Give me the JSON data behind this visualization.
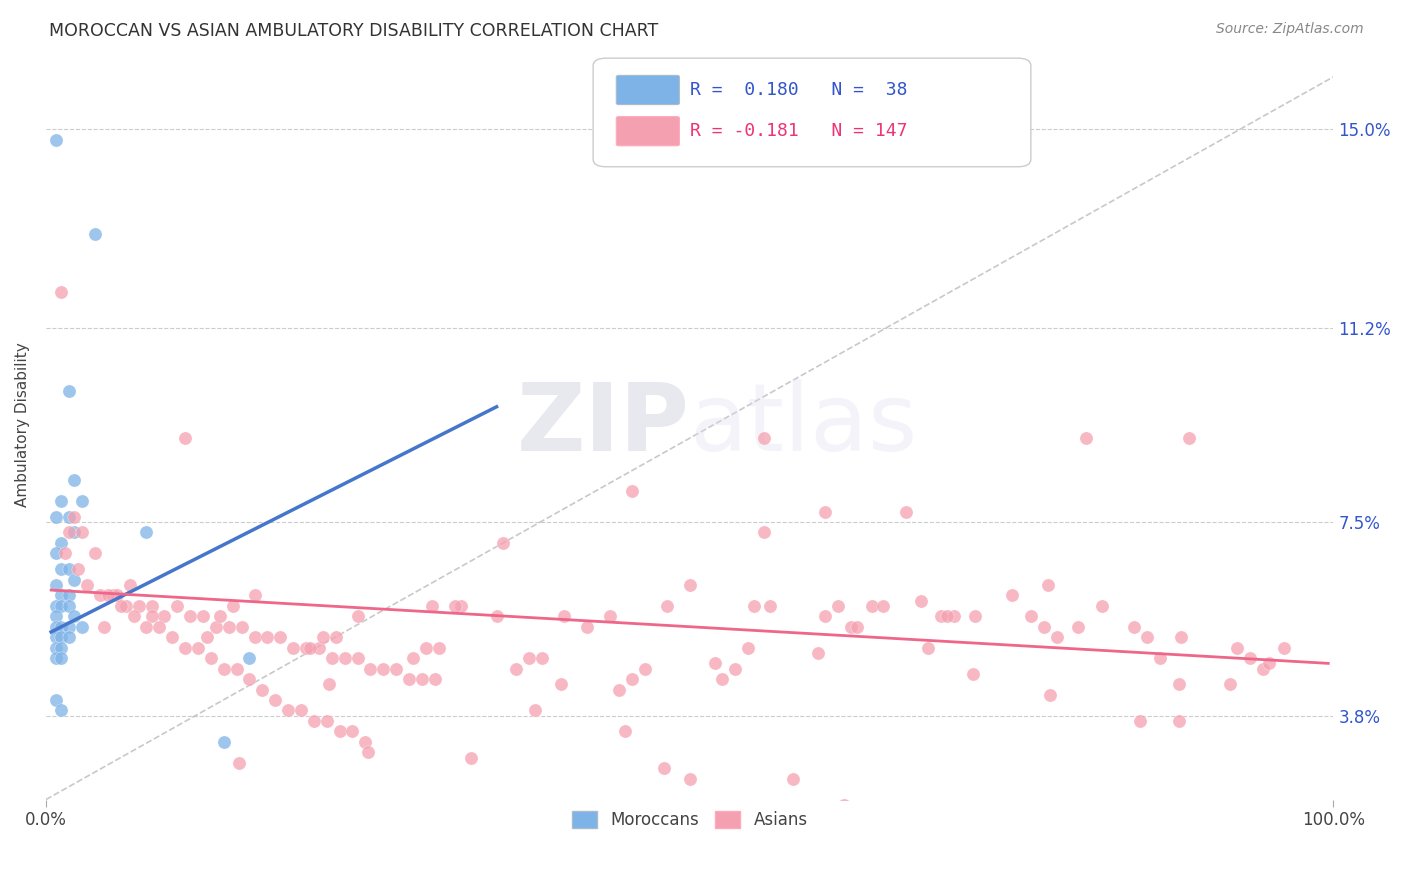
{
  "title": "MOROCCAN VS ASIAN AMBULATORY DISABILITY CORRELATION CHART",
  "source": "Source: ZipAtlas.com",
  "ylabel": "Ambulatory Disability",
  "ytick_labels": [
    "3.8%",
    "7.5%",
    "11.2%",
    "15.0%"
  ],
  "ytick_values": [
    0.038,
    0.075,
    0.112,
    0.15
  ],
  "xmin": 0.0,
  "xmax": 1.0,
  "ymin": 0.022,
  "ymax": 0.165,
  "moroccan_color": "#7EB3E8",
  "asian_color": "#F5A0B0",
  "moroccan_line_color": "#4477CC",
  "asian_line_color": "#EE6688",
  "dashed_line_color": "#BBBBBB",
  "legend_text_color": "#3355CC",
  "watermark_color": "#DDDDEE",
  "background_color": "#FFFFFF",
  "moroccan_x": [
    0.008,
    0.038,
    0.018,
    0.022,
    0.012,
    0.028,
    0.008,
    0.018,
    0.022,
    0.012,
    0.008,
    0.012,
    0.018,
    0.022,
    0.008,
    0.012,
    0.018,
    0.008,
    0.012,
    0.018,
    0.008,
    0.022,
    0.008,
    0.012,
    0.018,
    0.028,
    0.008,
    0.012,
    0.018,
    0.008,
    0.012,
    0.008,
    0.012,
    0.078,
    0.158,
    0.008,
    0.012,
    0.138
  ],
  "moroccan_y": [
    0.148,
    0.13,
    0.1,
    0.083,
    0.079,
    0.079,
    0.076,
    0.076,
    0.073,
    0.071,
    0.069,
    0.066,
    0.066,
    0.064,
    0.063,
    0.061,
    0.061,
    0.059,
    0.059,
    0.059,
    0.057,
    0.057,
    0.055,
    0.055,
    0.055,
    0.055,
    0.053,
    0.053,
    0.053,
    0.051,
    0.051,
    0.049,
    0.049,
    0.073,
    0.049,
    0.041,
    0.039,
    0.033
  ],
  "moroccan_line_x": [
    0.004,
    0.35
  ],
  "moroccan_line_y": [
    0.054,
    0.097
  ],
  "asian_line_x": [
    0.004,
    0.996
  ],
  "asian_line_y": [
    0.062,
    0.048
  ],
  "diag_line_x": [
    0.0,
    1.0
  ],
  "diag_line_y": [
    0.022,
    0.16
  ],
  "asian_x": [
    0.012,
    0.022,
    0.015,
    0.025,
    0.032,
    0.042,
    0.052,
    0.062,
    0.072,
    0.082,
    0.092,
    0.102,
    0.112,
    0.122,
    0.132,
    0.142,
    0.152,
    0.162,
    0.172,
    0.182,
    0.192,
    0.202,
    0.212,
    0.222,
    0.232,
    0.242,
    0.252,
    0.262,
    0.272,
    0.282,
    0.292,
    0.302,
    0.082,
    0.162,
    0.242,
    0.322,
    0.402,
    0.482,
    0.562,
    0.642,
    0.722,
    0.802,
    0.882,
    0.962,
    0.055,
    0.135,
    0.215,
    0.295,
    0.375,
    0.455,
    0.535,
    0.615,
    0.695,
    0.775,
    0.855,
    0.935,
    0.045,
    0.125,
    0.205,
    0.285,
    0.365,
    0.445,
    0.525,
    0.605,
    0.685,
    0.765,
    0.845,
    0.925,
    0.065,
    0.145,
    0.225,
    0.305,
    0.385,
    0.465,
    0.545,
    0.625,
    0.705,
    0.785,
    0.865,
    0.945,
    0.018,
    0.028,
    0.038,
    0.048,
    0.058,
    0.068,
    0.078,
    0.088,
    0.098,
    0.108,
    0.118,
    0.128,
    0.138,
    0.148,
    0.158,
    0.168,
    0.178,
    0.188,
    0.198,
    0.208,
    0.218,
    0.228,
    0.238,
    0.248,
    0.108,
    0.558,
    0.808,
    0.355,
    0.455,
    0.605,
    0.318,
    0.438,
    0.558,
    0.668,
    0.778,
    0.888,
    0.35,
    0.5,
    0.65,
    0.75,
    0.3,
    0.42,
    0.55,
    0.63,
    0.7,
    0.22,
    0.88,
    0.92,
    0.5,
    0.62,
    0.38,
    0.45,
    0.58,
    0.82,
    0.95,
    0.72,
    0.68,
    0.85,
    0.25,
    0.33,
    0.48,
    0.6,
    0.15,
    0.52,
    0.4,
    0.78,
    0.88
  ],
  "asian_y": [
    0.119,
    0.076,
    0.069,
    0.066,
    0.063,
    0.061,
    0.061,
    0.059,
    0.059,
    0.059,
    0.057,
    0.059,
    0.057,
    0.057,
    0.055,
    0.055,
    0.055,
    0.053,
    0.053,
    0.053,
    0.051,
    0.051,
    0.051,
    0.049,
    0.049,
    0.049,
    0.047,
    0.047,
    0.047,
    0.045,
    0.045,
    0.045,
    0.057,
    0.061,
    0.057,
    0.059,
    0.057,
    0.059,
    0.059,
    0.059,
    0.057,
    0.055,
    0.053,
    0.051,
    0.061,
    0.057,
    0.053,
    0.051,
    0.049,
    0.045,
    0.047,
    0.059,
    0.057,
    0.055,
    0.053,
    0.049,
    0.055,
    0.053,
    0.051,
    0.049,
    0.047,
    0.043,
    0.045,
    0.057,
    0.051,
    0.057,
    0.055,
    0.051,
    0.063,
    0.059,
    0.053,
    0.051,
    0.049,
    0.047,
    0.051,
    0.055,
    0.057,
    0.053,
    0.049,
    0.047,
    0.073,
    0.073,
    0.069,
    0.061,
    0.059,
    0.057,
    0.055,
    0.055,
    0.053,
    0.051,
    0.051,
    0.049,
    0.047,
    0.047,
    0.045,
    0.043,
    0.041,
    0.039,
    0.039,
    0.037,
    0.037,
    0.035,
    0.035,
    0.033,
    0.091,
    0.091,
    0.091,
    0.071,
    0.081,
    0.077,
    0.059,
    0.057,
    0.073,
    0.077,
    0.063,
    0.091,
    0.057,
    0.063,
    0.059,
    0.061,
    0.059,
    0.055,
    0.059,
    0.055,
    0.057,
    0.044,
    0.044,
    0.044,
    0.026,
    0.021,
    0.039,
    0.035,
    0.026,
    0.059,
    0.048,
    0.046,
    0.06,
    0.037,
    0.031,
    0.03,
    0.028,
    0.05,
    0.029,
    0.048,
    0.044,
    0.042,
    0.037
  ]
}
